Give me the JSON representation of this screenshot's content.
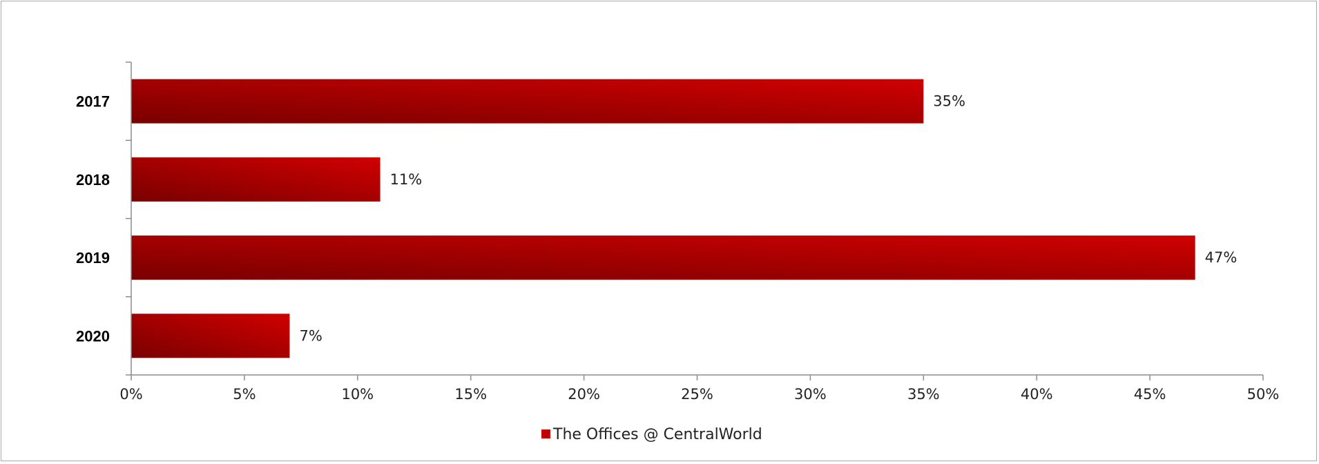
{
  "chart_data": {
    "type": "bar",
    "orientation": "horizontal",
    "categories": [
      "2017",
      "2018",
      "2019",
      "2020"
    ],
    "series": [
      {
        "name": "The Offices @ CentralWorld",
        "values": [
          35,
          11,
          47,
          7
        ],
        "data_labels": [
          "35%",
          "11%",
          "47%",
          "7%"
        ],
        "color": "#c00000"
      }
    ],
    "x_ticks": [
      "0%",
      "5%",
      "10%",
      "15%",
      "20%",
      "25%",
      "30%",
      "35%",
      "40%",
      "45%",
      "50%"
    ],
    "xlim": [
      0,
      50
    ],
    "unit": "%",
    "title": "",
    "xlabel": "",
    "ylabel": "",
    "grid": false,
    "legend_position": "bottom"
  },
  "colors": {
    "bar_light": "#d00000",
    "bar_dark": "#7a0000",
    "axis": "#8c8c8c",
    "frame": "#a6aab0"
  }
}
